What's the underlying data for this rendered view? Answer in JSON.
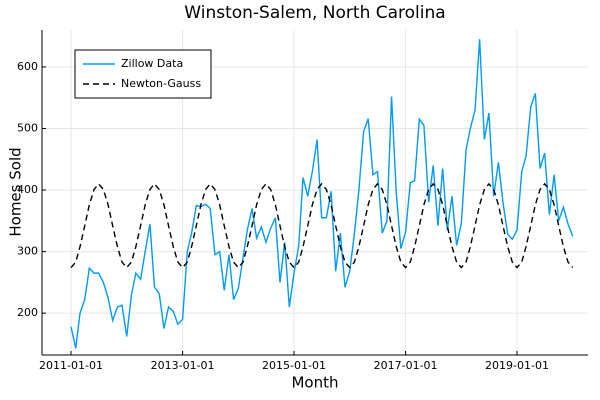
{
  "chart_data": {
    "type": "line",
    "title": "Winston-Salem, North Carolina",
    "x_label": "Month",
    "y_label": "Homes Sold",
    "x": [
      "2011-01-01",
      "2011-02-01",
      "2011-03-01",
      "2011-04-01",
      "2011-05-01",
      "2011-06-01",
      "2011-07-01",
      "2011-08-01",
      "2011-09-01",
      "2011-10-01",
      "2011-11-01",
      "2011-12-01",
      "2012-01-01",
      "2012-02-01",
      "2012-03-01",
      "2012-04-01",
      "2012-05-01",
      "2012-06-01",
      "2012-07-01",
      "2012-08-01",
      "2012-09-01",
      "2012-10-01",
      "2012-11-01",
      "2012-12-01",
      "2013-01-01",
      "2013-02-01",
      "2013-03-01",
      "2013-04-01",
      "2013-05-01",
      "2013-06-01",
      "2013-07-01",
      "2013-08-01",
      "2013-09-01",
      "2013-10-01",
      "2013-11-01",
      "2013-12-01",
      "2014-01-01",
      "2014-02-01",
      "2014-03-01",
      "2014-04-01",
      "2014-05-01",
      "2014-06-01",
      "2014-07-01",
      "2014-08-01",
      "2014-09-01",
      "2014-10-01",
      "2014-11-01",
      "2014-12-01",
      "2015-01-01",
      "2015-02-01",
      "2015-03-01",
      "2015-04-01",
      "2015-05-01",
      "2015-06-01",
      "2015-07-01",
      "2015-08-01",
      "2015-09-01",
      "2015-10-01",
      "2015-11-01",
      "2015-12-01",
      "2016-01-01",
      "2016-02-01",
      "2016-03-01",
      "2016-04-01",
      "2016-05-01",
      "2016-06-01",
      "2016-07-01",
      "2016-08-01",
      "2016-09-01",
      "2016-10-01",
      "2016-11-01",
      "2016-12-01",
      "2017-01-01",
      "2017-02-01",
      "2017-03-01",
      "2017-04-01",
      "2017-05-01",
      "2017-06-01",
      "2017-07-01",
      "2017-08-01",
      "2017-09-01",
      "2017-10-01",
      "2017-11-01",
      "2017-12-01",
      "2018-01-01",
      "2018-02-01",
      "2018-03-01",
      "2018-04-01",
      "2018-05-01",
      "2018-06-01",
      "2018-07-01",
      "2018-08-01",
      "2018-09-01",
      "2018-10-01",
      "2018-11-01",
      "2018-12-01",
      "2019-01-01",
      "2019-02-01",
      "2019-03-01",
      "2019-04-01",
      "2019-05-01",
      "2019-06-01",
      "2019-07-01",
      "2019-08-01",
      "2019-09-01",
      "2019-10-01",
      "2019-11-01",
      "2019-12-01",
      "2020-01-01"
    ],
    "series": [
      {
        "name": "Zillow Data",
        "color": "#009af9",
        "dash": false,
        "values": [
          178,
          143,
          200,
          222,
          273,
          265,
          265,
          250,
          225,
          188,
          210,
          213,
          162,
          230,
          265,
          255,
          300,
          345,
          242,
          232,
          175,
          210,
          203,
          182,
          190,
          300,
          330,
          375,
          373,
          377,
          370,
          295,
          300,
          237,
          295,
          222,
          240,
          290,
          335,
          370,
          322,
          340,
          315,
          338,
          355,
          250,
          315,
          210,
          265,
          310,
          420,
          390,
          430,
          482,
          355,
          355,
          398,
          268,
          330,
          242,
          268,
          330,
          400,
          495,
          516,
          425,
          430,
          330,
          350,
          552,
          395,
          305,
          332,
          412,
          415,
          515,
          505,
          380,
          440,
          342,
          435,
          335,
          390,
          310,
          345,
          465,
          500,
          530,
          645,
          482,
          525,
          390,
          445,
          380,
          328,
          320,
          335,
          430,
          455,
          535,
          557,
          435,
          460,
          360,
          425,
          350,
          372,
          345,
          325
        ]
      },
      {
        "name": "Newton-Gauss",
        "color": "#000000",
        "dash": true,
        "values": [
          274,
          283,
          308,
          342,
          376,
          401,
          410,
          401,
          376,
          342,
          308,
          283,
          274,
          283,
          308,
          342,
          376,
          401,
          410,
          401,
          376,
          342,
          308,
          283,
          274,
          283,
          308,
          342,
          376,
          401,
          410,
          401,
          376,
          342,
          308,
          283,
          274,
          283,
          308,
          342,
          376,
          401,
          410,
          401,
          376,
          342,
          308,
          283,
          274,
          283,
          308,
          342,
          376,
          401,
          410,
          401,
          376,
          342,
          308,
          283,
          274,
          283,
          308,
          342,
          376,
          401,
          410,
          401,
          376,
          342,
          308,
          283,
          274,
          283,
          308,
          342,
          376,
          401,
          410,
          401,
          376,
          342,
          308,
          283,
          274,
          283,
          308,
          342,
          376,
          401,
          410,
          401,
          376,
          342,
          308,
          283,
          274,
          283,
          308,
          342,
          376,
          401,
          410,
          401,
          376,
          342,
          308,
          283,
          274
        ]
      }
    ],
    "xlim": [
      "2010-06-25",
      "2020-04-10"
    ],
    "xticks": [
      "2011-01-01",
      "2013-01-01",
      "2015-01-01",
      "2017-01-01",
      "2019-01-01"
    ],
    "ylim": [
      132,
      660
    ],
    "yticks": [
      200,
      300,
      400,
      500,
      600
    ],
    "grid": true,
    "legend": "top-left"
  }
}
